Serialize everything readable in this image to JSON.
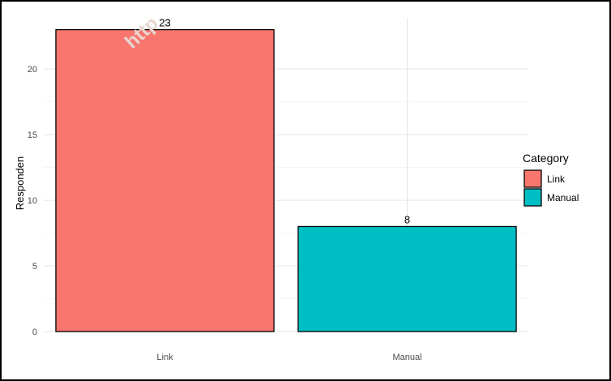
{
  "chart_data": {
    "type": "bar",
    "title": "",
    "xlabel": "",
    "ylabel": "Responden",
    "categories": [
      "Link",
      "Manual"
    ],
    "values": [
      23,
      8
    ],
    "data_labels": [
      "23",
      "8"
    ],
    "colors": [
      "#F8766D",
      "#00BFC4"
    ],
    "ylim": [
      0,
      23.9
    ],
    "yticks": [
      0,
      5,
      10,
      15,
      20
    ],
    "ytick_labels": [
      "0",
      "5",
      "10",
      "15",
      "20"
    ],
    "grid": true,
    "legend": {
      "title": "Category",
      "position": "right",
      "entries": [
        "Link",
        "Manual"
      ]
    }
  },
  "watermark": "http"
}
